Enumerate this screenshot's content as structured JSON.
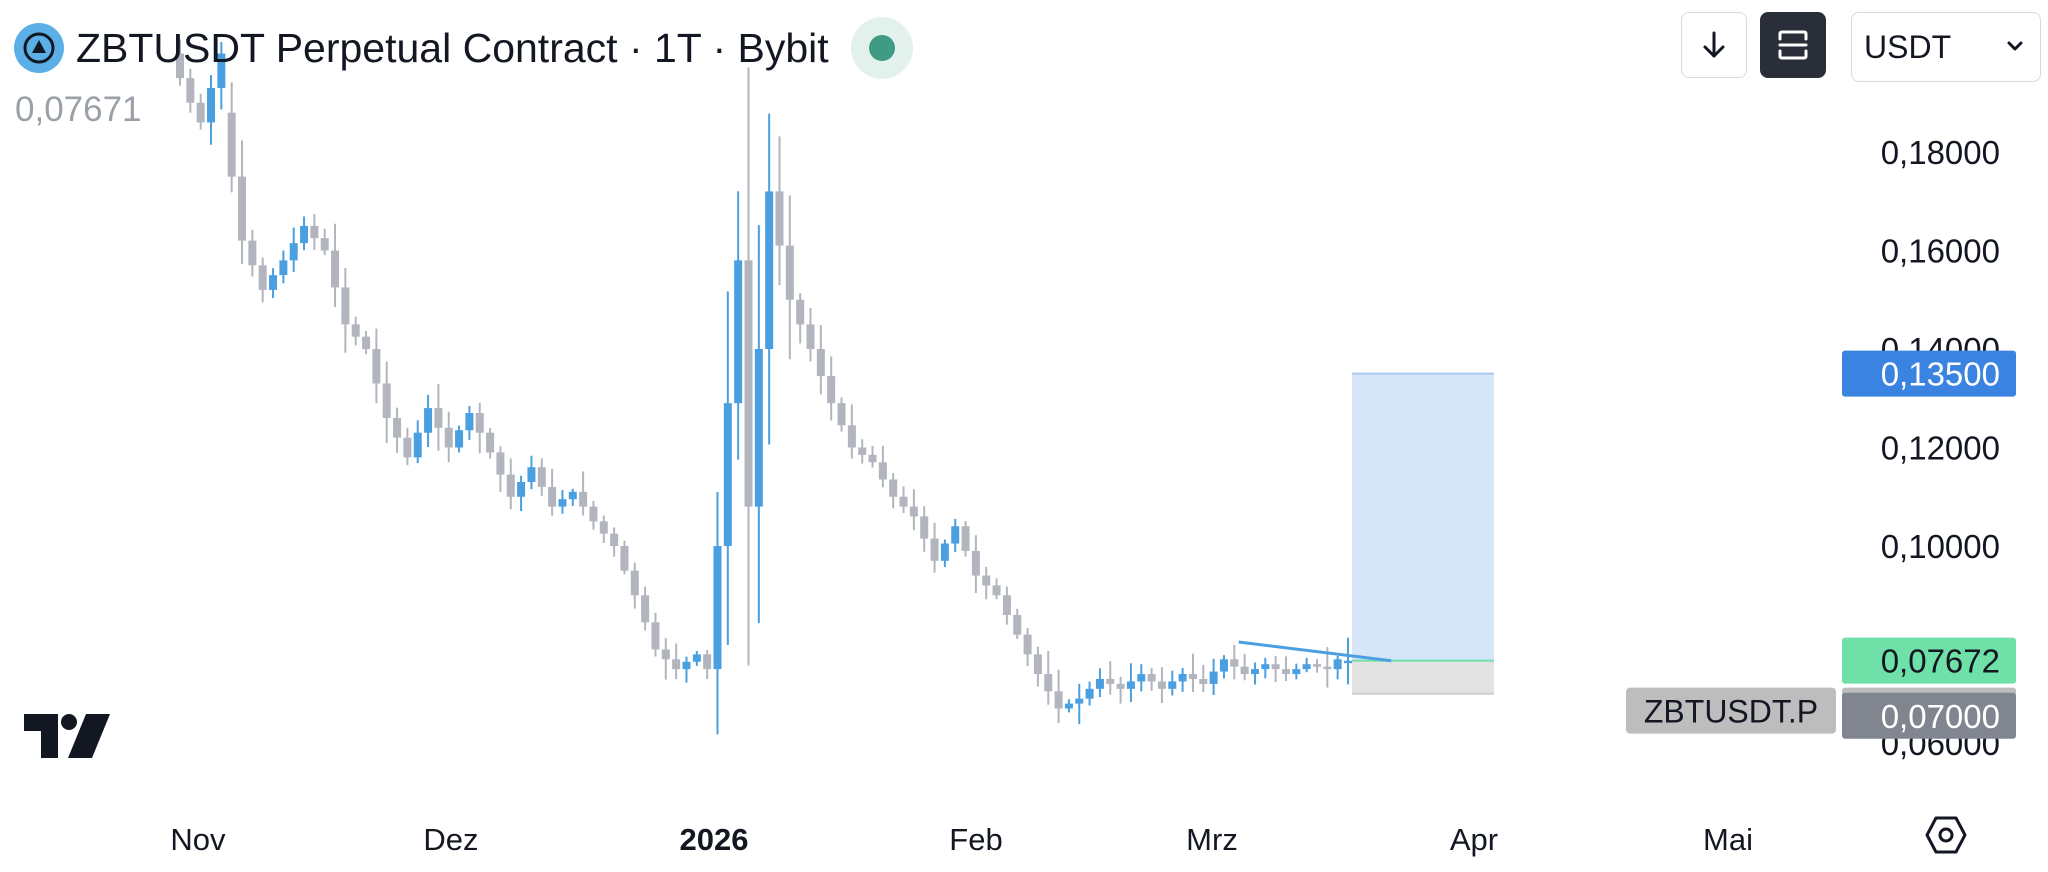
{
  "header": {
    "title": "ZBTUSDT Perpetual Contract · 1T · Bybit",
    "last_price": "0,07671",
    "currency": "USDT"
  },
  "toolbar": {
    "icons": [
      "arrow-down-icon",
      "fit-screen-icon",
      "chevron-down-icon"
    ]
  },
  "logo": "tradingview-logo",
  "colors": {
    "up": "#4a9fe0",
    "down": "#b2b5be",
    "target_zone": "#d6e6f8",
    "stop_zone": "#e3e3e3",
    "current_line": "#6fe0a8",
    "target_label": "#3b83e0",
    "entry_label": "#6fe0a8",
    "price_label": "#bdbdbd",
    "stop_label": "#808590",
    "trendline": "#4a9fe0"
  },
  "chart_data": {
    "type": "candlestick",
    "title": "ZBTUSDT Perpetual Contract · 1T · Bybit",
    "yaxis": {
      "ticks": [
        "0,18000",
        "0,16000",
        "0,14000",
        "0,12000",
        "0,10000",
        "0,06000"
      ],
      "tick_values": [
        0.18,
        0.16,
        0.14,
        0.12,
        0.1,
        0.06
      ],
      "range": [
        0.054,
        0.206
      ],
      "position": "right"
    },
    "xaxis": {
      "ticks": [
        "Nov",
        "Dez",
        "2026",
        "Feb",
        "Mrz",
        "Apr",
        "Mai"
      ],
      "bold": [
        "2026"
      ]
    },
    "candle_span": {
      "start": "2025-10-28",
      "end": "2026-03-19",
      "interval": "1D"
    },
    "price_path": [
      [
        0,
        0.2,
        0.19
      ],
      [
        2,
        0.19,
        0.186
      ],
      [
        3,
        0.186,
        0.2
      ],
      [
        5,
        0.188,
        0.162
      ],
      [
        7,
        0.162,
        0.152
      ],
      [
        9,
        0.152,
        0.158
      ],
      [
        11,
        0.158,
        0.165
      ],
      [
        13,
        0.165,
        0.16
      ],
      [
        15,
        0.16,
        0.145
      ],
      [
        17,
        0.145,
        0.14
      ],
      [
        19,
        0.14,
        0.126
      ],
      [
        21,
        0.126,
        0.118
      ],
      [
        23,
        0.118,
        0.128
      ],
      [
        25,
        0.128,
        0.12
      ],
      [
        27,
        0.12,
        0.127
      ],
      [
        29,
        0.127,
        0.119
      ],
      [
        31,
        0.119,
        0.11
      ],
      [
        33,
        0.11,
        0.116
      ],
      [
        35,
        0.116,
        0.108
      ],
      [
        37,
        0.108,
        0.111
      ],
      [
        39,
        0.111,
        0.105
      ],
      [
        41,
        0.105,
        0.1
      ],
      [
        43,
        0.1,
        0.09
      ],
      [
        45,
        0.09,
        0.079
      ],
      [
        47,
        0.079,
        0.075
      ],
      [
        49,
        0.075,
        0.078
      ],
      [
        51,
        0.078,
        0.075
      ],
      [
        52,
        0.075,
        0.1
      ],
      [
        53,
        0.1,
        0.158
      ],
      [
        55,
        0.158,
        0.108
      ],
      [
        56,
        0.108,
        0.172
      ],
      [
        58,
        0.172,
        0.15
      ],
      [
        60,
        0.15,
        0.14
      ],
      [
        62,
        0.14,
        0.129
      ],
      [
        64,
        0.129,
        0.12
      ],
      [
        66,
        0.12,
        0.117
      ],
      [
        68,
        0.117,
        0.11
      ],
      [
        70,
        0.11,
        0.106
      ],
      [
        72,
        0.106,
        0.097
      ],
      [
        74,
        0.097,
        0.104
      ],
      [
        76,
        0.104,
        0.094
      ],
      [
        78,
        0.094,
        0.09
      ],
      [
        80,
        0.09,
        0.082
      ],
      [
        82,
        0.082,
        0.074
      ],
      [
        84,
        0.074,
        0.067
      ],
      [
        86,
        0.067,
        0.069
      ],
      [
        88,
        0.069,
        0.073
      ],
      [
        90,
        0.073,
        0.071
      ],
      [
        92,
        0.071,
        0.074
      ],
      [
        94,
        0.074,
        0.071
      ],
      [
        96,
        0.071,
        0.074
      ],
      [
        98,
        0.074,
        0.072
      ],
      [
        100,
        0.072,
        0.077
      ],
      [
        102,
        0.077,
        0.074
      ],
      [
        104,
        0.074,
        0.076
      ],
      [
        106,
        0.076,
        0.074
      ],
      [
        108,
        0.074,
        0.076
      ],
      [
        110,
        0.076,
        0.075
      ],
      [
        112,
        0.075,
        0.077
      ],
      [
        113,
        0.077,
        0.0767
      ]
    ],
    "trendline": {
      "start": {
        "date": "2026-03-02",
        "price": 0.0805
      },
      "end": {
        "date": "2026-03-20",
        "price": 0.0767
      }
    },
    "position_tool": {
      "type": "long",
      "entry": 0.07672,
      "target": 0.135,
      "stop": 0.07
    },
    "price_labels": [
      {
        "text": "0,13500",
        "value": 0.135,
        "kind": "target"
      },
      {
        "text": "0,07672",
        "value": 0.07672,
        "kind": "entry"
      },
      {
        "text": "0,07671",
        "value": 0.07671,
        "kind": "last"
      },
      {
        "text": "0,07000",
        "value": 0.07,
        "kind": "stop"
      }
    ],
    "symbol_label": "ZBTUSDT.P",
    "legend": "none"
  }
}
